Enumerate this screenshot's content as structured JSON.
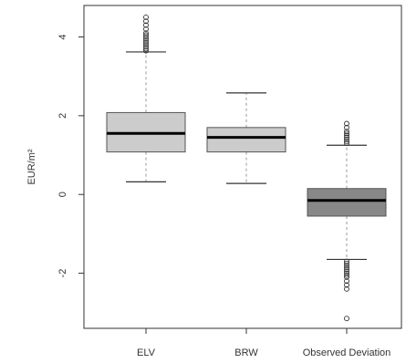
{
  "chart_data": {
    "type": "boxplot",
    "title": "",
    "xlabel": "",
    "ylabel": "EUR/m²",
    "ylim": [
      -3.4,
      4.8
    ],
    "y_ticks": [
      {
        "value": -2,
        "label": "-2"
      },
      {
        "value": 0,
        "label": "0"
      },
      {
        "value": 2,
        "label": "2"
      },
      {
        "value": 4,
        "label": "4"
      }
    ],
    "categories": [
      "ELV",
      "BRW",
      "Observed Deviation"
    ],
    "boxes": [
      {
        "category": "ELV",
        "whisker_low": 0.32,
        "q1": 1.08,
        "median": 1.55,
        "q3": 2.08,
        "whisker_high": 3.62,
        "fill": "#cccccc",
        "whisker_style": "dashed",
        "outliers": [
          3.65,
          3.7,
          3.75,
          3.8,
          3.85,
          3.9,
          3.95,
          4.0,
          4.05,
          4.1,
          4.2,
          4.3,
          4.4,
          4.5
        ]
      },
      {
        "category": "BRW",
        "whisker_low": 0.28,
        "q1": 1.08,
        "median": 1.45,
        "q3": 1.7,
        "whisker_high": 2.58,
        "fill": "#cccccc",
        "whisker_style": "dashed",
        "outliers": []
      },
      {
        "category": "Observed Deviation",
        "whisker_low": -1.65,
        "q1": -0.55,
        "median": -0.15,
        "q3": 0.15,
        "whisker_high": 1.25,
        "fill": "#888888",
        "whisker_style": "dashed",
        "outliers": [
          1.3,
          1.35,
          1.4,
          1.45,
          1.5,
          1.55,
          1.6,
          1.7,
          1.8,
          -1.7,
          -1.75,
          -1.8,
          -1.85,
          -1.9,
          -1.95,
          -2.0,
          -2.05,
          -2.1,
          -2.2,
          -2.3,
          -2.4,
          -3.15
        ]
      }
    ],
    "grid": false,
    "legend": "none",
    "colors": {
      "axis": "#333333",
      "median": "#000000",
      "whisker": "#999999",
      "cap": "#333333"
    }
  }
}
